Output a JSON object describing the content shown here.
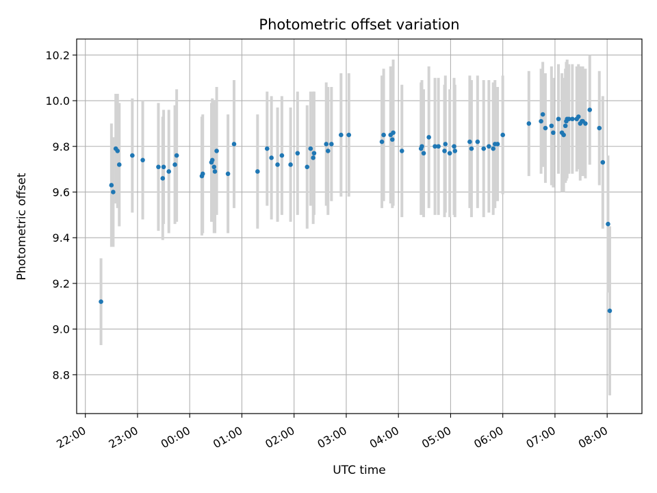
{
  "chart_data": {
    "type": "scatter",
    "title": "Photometric offset variation",
    "xlabel": "UTC time",
    "ylabel": "Photometric offset",
    "grid": true,
    "colors": {
      "point": "#1f77b4",
      "errorbar": "#d3d3d3",
      "grid": "#b0b0b0"
    },
    "x_unit": "UTC clock time, night of observation; times past 24:00 are after midnight",
    "xlim": [
      "21:50",
      "32:40"
    ],
    "ylim": [
      8.63,
      10.27
    ],
    "x_ticks": [
      "22:00",
      "23:00",
      "00:00",
      "01:00",
      "02:00",
      "03:00",
      "04:00",
      "05:00",
      "06:00",
      "07:00",
      "08:00"
    ],
    "y_ticks": [
      "8.8",
      "9.0",
      "9.2",
      "9.4",
      "9.6",
      "9.8",
      "10.0",
      "10.2"
    ],
    "series": [
      {
        "x": [
          "22:18",
          "22:30",
          "22:32",
          "22:35",
          "22:37",
          "22:39",
          "22:54",
          "23:06",
          "23:24",
          "23:29",
          "23:30",
          "23:36",
          "23:43",
          "23:45",
          "24:14",
          "24:15",
          "24:25",
          "24:26",
          "24:28",
          "24:29",
          "24:31",
          "24:44",
          "24:51",
          "25:18",
          "25:29",
          "25:34",
          "25:41",
          "25:46",
          "25:56",
          "26:04",
          "26:15",
          "26:19",
          "26:22",
          "26:23",
          "26:37",
          "26:39",
          "26:43",
          "26:54",
          "27:03",
          "27:41",
          "27:43",
          "27:51",
          "27:53",
          "27:54",
          "28:04",
          "28:26",
          "28:27",
          "28:29",
          "28:35",
          "28:42",
          "28:46",
          "28:53",
          "28:54",
          "28:59",
          "29:04",
          "29:05",
          "29:22",
          "29:24",
          "29:31",
          "29:38",
          "29:44",
          "29:49",
          "29:51",
          "29:54",
          "30:00",
          "30:30",
          "30:44",
          "30:46",
          "30:49",
          "30:56",
          "30:58",
          "31:04",
          "31:08",
          "31:10",
          "31:12",
          "31:13",
          "31:14",
          "31:16",
          "31:20",
          "31:25",
          "31:27",
          "31:29",
          "31:31",
          "31:32",
          "31:35",
          "31:40",
          "31:51",
          "31:55",
          "32:01",
          "32:03"
        ],
        "y": [
          9.12,
          9.63,
          9.6,
          9.79,
          9.78,
          9.72,
          9.76,
          9.74,
          9.71,
          9.66,
          9.71,
          9.69,
          9.72,
          9.76,
          9.67,
          9.68,
          9.73,
          9.74,
          9.71,
          9.69,
          9.78,
          9.68,
          9.81,
          9.69,
          9.79,
          9.75,
          9.72,
          9.76,
          9.72,
          9.77,
          9.71,
          9.79,
          9.75,
          9.77,
          9.81,
          9.78,
          9.81,
          9.85,
          9.85,
          9.82,
          9.85,
          9.85,
          9.83,
          9.86,
          9.78,
          9.79,
          9.8,
          9.77,
          9.84,
          9.8,
          9.8,
          9.78,
          9.81,
          9.77,
          9.8,
          9.78,
          9.82,
          9.79,
          9.82,
          9.79,
          9.8,
          9.79,
          9.81,
          9.81,
          9.85,
          9.9,
          9.91,
          9.94,
          9.88,
          9.89,
          9.86,
          9.92,
          9.86,
          9.85,
          9.89,
          9.91,
          9.92,
          9.92,
          9.92,
          9.92,
          9.93,
          9.9,
          9.91,
          9.91,
          9.9,
          9.96,
          9.88,
          9.73,
          9.46,
          9.08
        ],
        "err": [
          0.19,
          0.27,
          0.24,
          0.24,
          0.25,
          0.27,
          0.25,
          0.26,
          0.28,
          0.27,
          0.25,
          0.27,
          0.26,
          0.29,
          0.26,
          0.26,
          0.26,
          0.27,
          0.29,
          0.27,
          0.28,
          0.26,
          0.28,
          0.25,
          0.25,
          0.27,
          0.25,
          0.26,
          0.25,
          0.27,
          0.27,
          0.25,
          0.29,
          0.27,
          0.27,
          0.28,
          0.25,
          0.27,
          0.27,
          0.29,
          0.29,
          0.3,
          0.3,
          0.32,
          0.29,
          0.29,
          0.29,
          0.28,
          0.31,
          0.3,
          0.3,
          0.29,
          0.3,
          0.28,
          0.3,
          0.29,
          0.29,
          0.3,
          0.29,
          0.3,
          0.29,
          0.29,
          0.28,
          0.25,
          0.26,
          0.23,
          0.23,
          0.23,
          0.24,
          0.26,
          0.24,
          0.24,
          0.26,
          0.25,
          0.25,
          0.26,
          0.26,
          0.24,
          0.24,
          0.23,
          0.23,
          0.25,
          0.23,
          0.24,
          0.24,
          0.24,
          0.25,
          0.29,
          0.3,
          0.37
        ]
      }
    ]
  }
}
